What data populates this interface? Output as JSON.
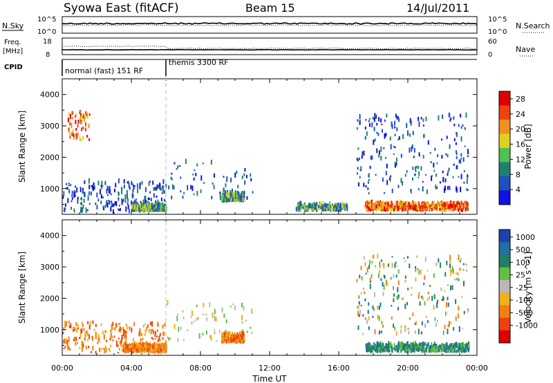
{
  "header": {
    "title": "Syowa East (fitACF)",
    "beam": "Beam 15",
    "date": "14/Jul/2011"
  },
  "strips": {
    "nsky_label": "N.Sky",
    "nsearch_label": "N.Search",
    "nsky_ticks": [
      "10^5",
      "10^0"
    ],
    "nsearch_ticks": [
      "10^5",
      "10^0"
    ],
    "freq_label_1": "Freq.",
    "freq_label_2": "[MHz]",
    "freq_ticks": [
      "18",
      "8"
    ],
    "nave_label": "Nave",
    "nave_ticks": [
      "60",
      "0"
    ],
    "cpid_label": "CPID",
    "cpid_modes": [
      {
        "label": "normal (fast) 151 RF",
        "start_hour": 0,
        "end_hour": 6
      },
      {
        "label": "themis 3300 RF",
        "start_hour": 6,
        "end_hour": 24
      }
    ]
  },
  "chart_data": [
    {
      "type": "heatmap",
      "panel": "power",
      "ylabel": "Slant Range [km]",
      "xlabel": "",
      "xlim": [
        0,
        24
      ],
      "ylim": [
        180,
        4500
      ],
      "yticks": [
        "1000",
        "2000",
        "3000",
        "4000"
      ],
      "colorbar_label": "Power [dB]",
      "colorbar_ticks": [
        "4",
        "8",
        "12",
        "16",
        "20",
        "24",
        "28"
      ],
      "colorbar_range": [
        0,
        30
      ],
      "colors": [
        "#1010e8",
        "#2050c0",
        "#208070",
        "#50c050",
        "#e0d020",
        "#f09020",
        "#f04010",
        "#e00000"
      ],
      "features": [
        {
          "hours": [
            0.0,
            6.0
          ],
          "range_km": [
            200,
            1200
          ],
          "level": "low",
          "density": "medium"
        },
        {
          "hours": [
            4.0,
            6.0
          ],
          "range_km": [
            250,
            400
          ],
          "level": "mid",
          "density": "high"
        },
        {
          "hours": [
            6.0,
            11.0
          ],
          "range_km": [
            600,
            1800
          ],
          "level": "low",
          "density": "sparse"
        },
        {
          "hours": [
            9.2,
            10.5
          ],
          "range_km": [
            550,
            800
          ],
          "level": "mid",
          "density": "medium"
        },
        {
          "hours": [
            13.5,
            16.5
          ],
          "range_km": [
            250,
            450
          ],
          "level": "mid",
          "density": "medium"
        },
        {
          "hours": [
            17.0,
            23.5
          ],
          "range_km": [
            800,
            3300
          ],
          "level": "low",
          "density": "medium"
        },
        {
          "hours": [
            17.5,
            23.5
          ],
          "range_km": [
            250,
            500
          ],
          "level": "high",
          "density": "high"
        },
        {
          "hours": [
            0.3,
            1.6
          ],
          "range_km": [
            2500,
            3400
          ],
          "level": "high",
          "density": "sparse"
        }
      ]
    },
    {
      "type": "heatmap",
      "panel": "velocity",
      "ylabel": "Slant Range [km]",
      "xlabel": "Time UT",
      "xlim": [
        0,
        24
      ],
      "ylim": [
        180,
        4500
      ],
      "xticks": [
        "00:00",
        "04:00",
        "08:00",
        "12:00",
        "16:00",
        "20:00",
        "00:00"
      ],
      "yticks": [
        "1000",
        "2000",
        "3000",
        "4000"
      ],
      "colorbar_label": "Velocity [m s^-1]",
      "colorbar_ticks": [
        "1000",
        "500",
        "100",
        "25",
        "-25",
        "-100",
        "-500",
        "-1000"
      ],
      "colors": [
        "#2040b0",
        "#2070a0",
        "#208060",
        "#60c040",
        "#b8b8b8",
        "#f0b020",
        "#f08010",
        "#f04010",
        "#e00000"
      ],
      "features": [
        {
          "hours": [
            0.0,
            6.0
          ],
          "range_km": [
            200,
            1200
          ],
          "level": "negative",
          "density": "medium"
        },
        {
          "hours": [
            3.5,
            6.0
          ],
          "range_km": [
            250,
            450
          ],
          "level": "negative",
          "density": "high"
        },
        {
          "hours": [
            6.0,
            11.0
          ],
          "range_km": [
            600,
            1800
          ],
          "level": "near-zero",
          "density": "sparse"
        },
        {
          "hours": [
            9.2,
            10.5
          ],
          "range_km": [
            550,
            800
          ],
          "level": "negative",
          "density": "medium"
        },
        {
          "hours": [
            17.0,
            23.5
          ],
          "range_km": [
            800,
            3300
          ],
          "level": "mixed",
          "density": "medium"
        },
        {
          "hours": [
            17.5,
            23.5
          ],
          "range_km": [
            250,
            500
          ],
          "level": "positive",
          "density": "high"
        }
      ]
    }
  ]
}
